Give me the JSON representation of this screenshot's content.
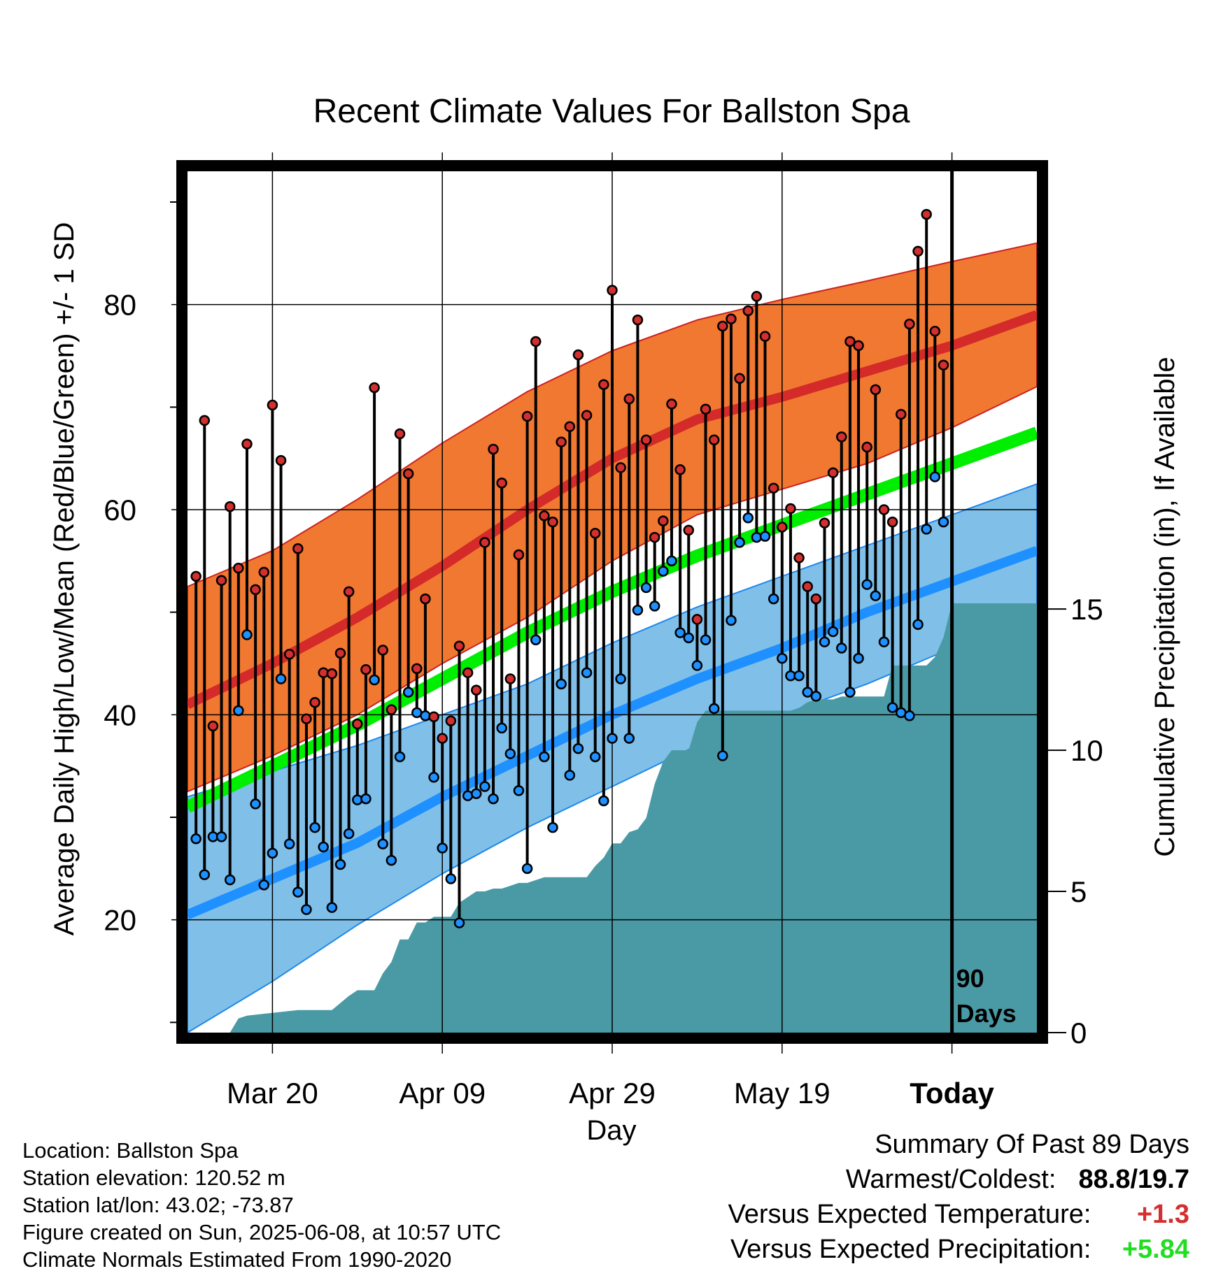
{
  "chart_data": {
    "type": "line",
    "title": "Recent Climate Values For Ballston Spa",
    "xlabel": "Day",
    "ylabel_left": "Average Daily High/Low/Mean (Red/Blue/Green) +/- 1 SD",
    "ylabel_right": "Cumulative Precipitation (in), If Available",
    "x_ticks": [
      "Mar 20",
      "Apr 09",
      "Apr 29",
      "May 19",
      "Today"
    ],
    "x_tick_days": [
      10,
      30,
      50,
      70,
      90
    ],
    "xlim": [
      0,
      100
    ],
    "ylim_left": [
      9,
      93
    ],
    "y_ticks_left": [
      "20",
      "40",
      "60",
      "80"
    ],
    "ylim_right": [
      0,
      30.5
    ],
    "y_ticks_right": [
      "0",
      "5",
      "10",
      "15"
    ],
    "grid": true,
    "today_marker_label": [
      "90",
      "Days"
    ],
    "normals": {
      "day": [
        0,
        10,
        20,
        30,
        40,
        50,
        60,
        70,
        80,
        90,
        100
      ],
      "high_mean": [
        41,
        45,
        49.5,
        54.5,
        60,
        65,
        68.8,
        71,
        73.5,
        76,
        79
      ],
      "high_plus_sd": [
        52.5,
        56,
        61,
        66.5,
        71.5,
        75.5,
        78.5,
        80.5,
        82.3,
        84.2,
        86
      ],
      "high_minus_sd": [
        32.5,
        36,
        40,
        45,
        49.5,
        55,
        59.5,
        62,
        64.5,
        68,
        72
      ],
      "mean": [
        31,
        35,
        39,
        43.5,
        48,
        52,
        55.5,
        58.5,
        61.5,
        64.5,
        67.5
      ],
      "low_mean": [
        20.5,
        24,
        27.5,
        32,
        36,
        40,
        43.5,
        46.5,
        50,
        53,
        56
      ],
      "low_plus_sd": [
        32,
        34.5,
        37,
        40,
        43,
        47,
        50.5,
        53.5,
        56.5,
        59.5,
        62.5
      ],
      "low_minus_sd": [
        9,
        14,
        19.5,
        24.5,
        29,
        33,
        37,
        40,
        43,
        46.5,
        50
      ]
    },
    "series": [
      {
        "name": "High",
        "color": "#d32f2f",
        "day": [
          1,
          2,
          3,
          4,
          5,
          6,
          7,
          8,
          9,
          10,
          11,
          12,
          13,
          14,
          15,
          16,
          17,
          18,
          19,
          20,
          21,
          22,
          23,
          24,
          25,
          26,
          27,
          28,
          29,
          30,
          31,
          32,
          33,
          34,
          35,
          36,
          37,
          38,
          39,
          40,
          41,
          42,
          43,
          44,
          45,
          46,
          47,
          48,
          49,
          50,
          51,
          52,
          53,
          54,
          55,
          56,
          57,
          58,
          59,
          60,
          61,
          62,
          63,
          64,
          65,
          66,
          67,
          68,
          69,
          70,
          71,
          72,
          73,
          74,
          75,
          76,
          77,
          78,
          79,
          80,
          81,
          82,
          83,
          84,
          85,
          86,
          87,
          88,
          89
        ],
        "values": [
          53.5,
          68.7,
          38.9,
          53.1,
          60.3,
          54.3,
          66.4,
          52.2,
          53.9,
          70.2,
          64.8,
          45.9,
          56.2,
          39.6,
          41.2,
          44.1,
          44.0,
          46.0,
          52.0,
          39.1,
          44.4,
          71.9,
          46.3,
          40.5,
          67.4,
          63.5,
          44.5,
          51.3,
          39.8,
          37.7,
          39.4,
          46.7,
          44.1,
          42.4,
          56.8,
          65.9,
          62.6,
          43.5,
          55.6,
          69.1,
          76.4,
          59.4,
          58.8,
          66.6,
          68.1,
          75.1,
          69.2,
          57.7,
          72.2,
          81.4,
          64.1,
          70.8,
          78.5,
          66.8,
          57.3,
          58.9,
          70.3,
          63.9,
          58.0,
          49.3,
          69.8,
          66.8,
          77.9,
          78.6,
          72.8,
          79.4,
          80.8,
          76.9,
          62.1,
          58.3,
          60.1,
          55.3,
          52.5,
          51.3,
          58.7,
          63.6,
          67.1,
          76.4,
          76.0,
          66.1,
          71.7,
          60.0,
          58.8,
          69.3,
          78.1,
          85.2,
          88.8,
          77.4,
          74.1
        ]
      },
      {
        "name": "Low",
        "color": "#2b8fe8",
        "day": [
          1,
          2,
          3,
          4,
          5,
          6,
          7,
          8,
          9,
          10,
          11,
          12,
          13,
          14,
          15,
          16,
          17,
          18,
          19,
          20,
          21,
          22,
          23,
          24,
          25,
          26,
          27,
          28,
          29,
          30,
          31,
          32,
          33,
          34,
          35,
          36,
          37,
          38,
          39,
          40,
          41,
          42,
          43,
          44,
          45,
          46,
          47,
          48,
          49,
          50,
          51,
          52,
          53,
          54,
          55,
          56,
          57,
          58,
          59,
          60,
          61,
          62,
          63,
          64,
          65,
          66,
          67,
          68,
          69,
          70,
          71,
          72,
          73,
          74,
          75,
          76,
          77,
          78,
          79,
          80,
          81,
          82,
          83,
          84,
          85,
          86,
          87,
          88,
          89
        ],
        "values": [
          27.9,
          24.4,
          28.1,
          28.1,
          23.9,
          40.4,
          47.8,
          31.3,
          23.4,
          26.5,
          43.5,
          27.4,
          22.7,
          21.0,
          29.0,
          27.1,
          21.2,
          25.4,
          28.4,
          31.7,
          31.8,
          43.4,
          27.4,
          25.8,
          35.9,
          42.2,
          40.2,
          39.9,
          33.9,
          27.0,
          24.0,
          19.7,
          32.1,
          32.3,
          33.0,
          31.8,
          38.7,
          36.2,
          32.6,
          25.0,
          47.3,
          35.9,
          29.0,
          43.0,
          34.1,
          36.7,
          44.1,
          35.9,
          31.6,
          37.7,
          43.5,
          37.7,
          50.2,
          52.4,
          50.6,
          54.0,
          55.0,
          48.0,
          47.5,
          44.8,
          47.3,
          40.6,
          36.0,
          49.2,
          56.8,
          59.2,
          57.3,
          57.4,
          51.3,
          45.5,
          43.8,
          43.8,
          42.2,
          41.8,
          47.1,
          48.1,
          46.5,
          42.2,
          45.5,
          52.7,
          51.6,
          47.1,
          40.7,
          40.2,
          39.9,
          48.8,
          58.1,
          63.2,
          58.8
        ]
      },
      {
        "name": "Cumulative Precipitation",
        "color": "#4a9aa6",
        "day": [
          0,
          5,
          6,
          7,
          10,
          13,
          17,
          19,
          20,
          21,
          22,
          23,
          24,
          25,
          26,
          27,
          28,
          29,
          30,
          31,
          32,
          33,
          34,
          35,
          36,
          37,
          38,
          39,
          40,
          41,
          42,
          43,
          44,
          45,
          46,
          47,
          48,
          49,
          50,
          51,
          52,
          53,
          54,
          55,
          56,
          57,
          58,
          59,
          60,
          61,
          62,
          63,
          64,
          65,
          66,
          67,
          68,
          69,
          70,
          71,
          72,
          73,
          74,
          75,
          76,
          77,
          78,
          79,
          80,
          81,
          82,
          83,
          84,
          85,
          86,
          87,
          88,
          89,
          90,
          100
        ],
        "values": [
          0,
          0,
          0.5,
          0.6,
          0.7,
          0.8,
          0.8,
          1.3,
          1.5,
          1.5,
          1.5,
          2.1,
          2.5,
          3.3,
          3.3,
          3.9,
          3.9,
          4.1,
          4.1,
          4.1,
          4.6,
          4.8,
          5.0,
          5.0,
          5.1,
          5.1,
          5.2,
          5.3,
          5.3,
          5.4,
          5.5,
          5.5,
          5.5,
          5.5,
          5.5,
          5.5,
          5.9,
          6.2,
          6.7,
          6.7,
          7.1,
          7.2,
          7.6,
          8.8,
          9.6,
          10.0,
          10.0,
          10.0,
          11.0,
          11.4,
          11.4,
          11.4,
          11.4,
          11.4,
          11.4,
          11.4,
          11.4,
          11.4,
          11.4,
          11.4,
          11.5,
          11.7,
          11.8,
          11.8,
          11.8,
          11.9,
          11.9,
          11.9,
          11.9,
          11.9,
          11.9,
          13.0,
          13.0,
          13.0,
          13.0,
          13.0,
          13.3,
          14.0,
          15.2,
          15.2
        ]
      }
    ]
  },
  "info": {
    "location": "Location: Ballston Spa",
    "elevation": "Station elevation: 120.52 m",
    "latlon": "Station lat/lon: 43.02; -73.87",
    "created": "Figure created on Sun, 2025-06-08, at 10:57 UTC",
    "normals": "Climate Normals Estimated From 1990-2020"
  },
  "summary": {
    "heading": "Summary Of Past 89 Days",
    "warm_cold_label": "Warmest/Coldest:",
    "warm_cold_value": "88.8/19.7",
    "temp_label": "Versus Expected Temperature:",
    "temp_value": "+1.3",
    "temp_color": "#d32f2f",
    "precip_label": "Versus Expected Precipitation:",
    "precip_value": "+5.84",
    "precip_color": "#22dd22"
  },
  "colors": {
    "high_band": "#f07830",
    "high_line": "#d42a2a",
    "mean_line": "#00ee00",
    "low_band": "#80c0e8",
    "low_line": "#1e90ff",
    "precip": "#4a9aa6"
  }
}
